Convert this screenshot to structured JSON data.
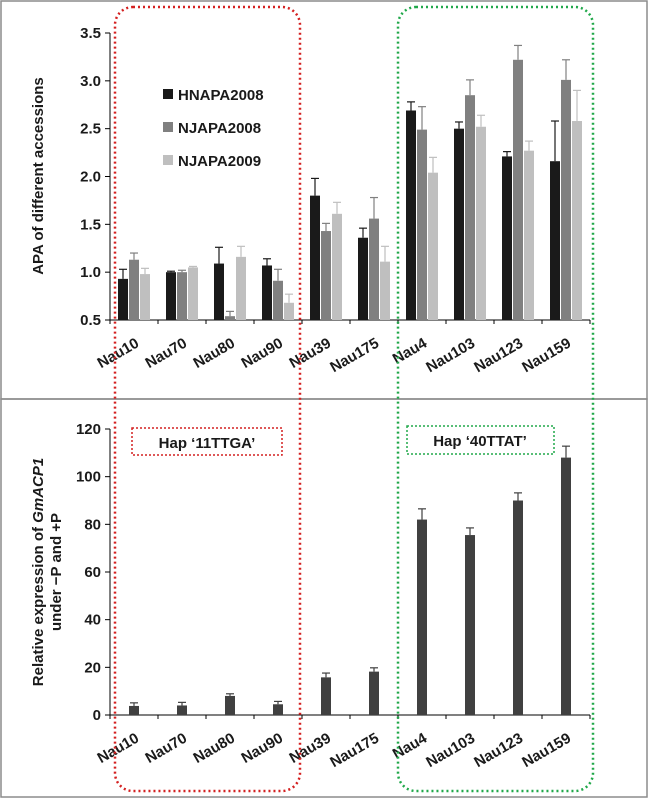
{
  "figure": {
    "box_labels": [
      "Hap ‘11TTGA’",
      "Hap ‘40TTAT’"
    ],
    "colors": {
      "red_box": "#d42020",
      "green_box": "#20a84a",
      "series_dark": "#1a1a1a",
      "series_mid": "#808080",
      "series_light": "#bfbfbf",
      "expression_bar": "#404040",
      "panel_border": "#8c8c8c"
    }
  },
  "chart_data": [
    {
      "type": "bar",
      "panel": "top",
      "title": "",
      "xlabel": "",
      "ylabel": "APA of different accessions",
      "ylim": [
        0.5,
        3.5
      ],
      "yticks": [
        "0.5",
        "1.0",
        "1.5",
        "2.0",
        "2.5",
        "3.0",
        "3.5"
      ],
      "categories": [
        "Nau10",
        "Nau70",
        "Nau80",
        "Nau90",
        "Nau39",
        "Nau175",
        "Nau4",
        "Nau103",
        "Nau123",
        "Nau159"
      ],
      "legend_position": "top-left",
      "series": [
        {
          "name": "HNAPA2008",
          "color": "#1a1a1a",
          "values": [
            0.93,
            1.0,
            1.09,
            1.07,
            1.8,
            1.36,
            2.69,
            2.5,
            2.21,
            2.16
          ],
          "errors": [
            0.1,
            0.01,
            0.17,
            0.07,
            0.18,
            0.1,
            0.09,
            0.07,
            0.05,
            0.42
          ]
        },
        {
          "name": "NJAPA2008",
          "color": "#808080",
          "values": [
            1.13,
            1.0,
            0.54,
            0.91,
            1.43,
            1.56,
            2.49,
            2.85,
            3.22,
            3.01
          ],
          "errors": [
            0.07,
            0.02,
            0.05,
            0.12,
            0.08,
            0.22,
            0.24,
            0.16,
            0.15,
            0.21
          ]
        },
        {
          "name": "NJAPA2009",
          "color": "#bfbfbf",
          "values": [
            0.98,
            1.05,
            1.16,
            0.68,
            1.61,
            1.11,
            2.04,
            2.52,
            2.27,
            2.58
          ],
          "errors": [
            0.06,
            0.01,
            0.11,
            0.09,
            0.12,
            0.16,
            0.16,
            0.12,
            0.1,
            0.32
          ]
        }
      ]
    },
    {
      "type": "bar",
      "panel": "bottom",
      "title": "",
      "xlabel": "",
      "ylabel_parts": [
        "Relative expression of ",
        "GmACP1",
        "under −P and +P"
      ],
      "ylim": [
        0,
        120
      ],
      "yticks": [
        "0",
        "20",
        "40",
        "60",
        "80",
        "100",
        "120"
      ],
      "categories": [
        "Nau10",
        "Nau70",
        "Nau80",
        "Nau90",
        "Nau39",
        "Nau175",
        "Nau4",
        "Nau103",
        "Nau123",
        "Nau159"
      ],
      "series": [
        {
          "color": "#404040",
          "values": [
            3.8,
            4.0,
            8.0,
            4.5,
            15.8,
            18.2,
            82.0,
            75.5,
            90.0,
            108.0
          ],
          "errors": [
            1.3,
            1.3,
            0.9,
            1.2,
            1.8,
            1.6,
            4.5,
            3.0,
            3.2,
            4.8
          ]
        }
      ]
    }
  ]
}
